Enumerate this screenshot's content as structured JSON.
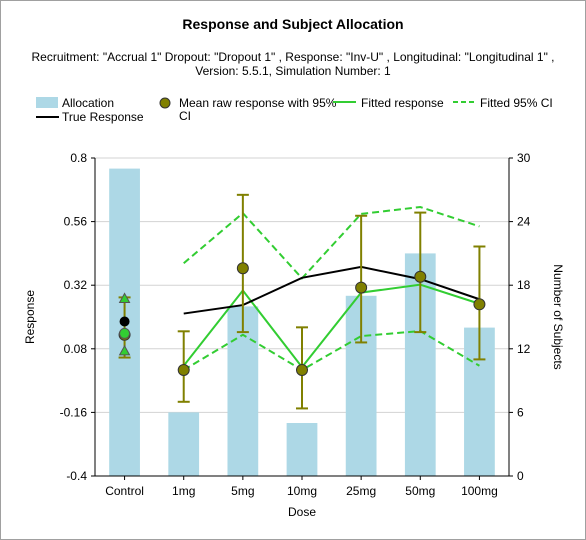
{
  "chart_data": {
    "type": "bar",
    "title": "Response and Subject Allocation",
    "subtitle": "Recruitment: \"Accrual 1\" Dropout: \"Dropout 1\" , Response: \"Inv-U\" , Longitudinal: \"Longitudinal 1\" , Version: 5.5.1, Simulation Number: 1",
    "xlabel": "Dose",
    "ylabel": "Response",
    "y2label": "Number of Subjects",
    "categories": [
      "Control",
      "1mg",
      "5mg",
      "10mg",
      "25mg",
      "50mg",
      "100mg"
    ],
    "ylim": [
      -0.4,
      0.8
    ],
    "yticks": [
      "0.8",
      "0.56",
      "0.32",
      "0.08",
      "-0.16",
      "-0.4"
    ],
    "ytick_values": [
      0.8,
      0.56,
      0.32,
      0.08,
      -0.16,
      -0.4
    ],
    "y2lim": [
      0,
      30
    ],
    "y2ticks": [
      "30",
      "24",
      "18",
      "12",
      "6",
      "0"
    ],
    "y2tick_values": [
      30,
      24,
      18,
      12,
      6,
      0
    ],
    "legend": {
      "position": "top",
      "entries": [
        {
          "label": "Allocation",
          "kind": "bar"
        },
        {
          "label": "Mean raw response with 95% CI",
          "kind": "marker"
        },
        {
          "label": "Fitted response",
          "kind": "line"
        },
        {
          "label": "Fitted 95% CI",
          "kind": "dashed"
        },
        {
          "label": "True Response",
          "kind": "line"
        }
      ]
    },
    "series": [
      {
        "name": "Allocation",
        "axis": "right",
        "values": [
          29,
          6,
          16,
          5,
          17,
          21,
          14
        ]
      },
      {
        "name": "Mean raw response with 95% CI",
        "axis": "left",
        "values": [
          0.133,
          0.0,
          0.384,
          0.0,
          0.311,
          0.352,
          0.248
        ],
        "lower": [
          0.047,
          -0.12,
          0.143,
          -0.145,
          0.104,
          0.143,
          0.04
        ],
        "upper": [
          0.274,
          0.146,
          0.661,
          0.161,
          0.582,
          0.594,
          0.466
        ]
      },
      {
        "name": "Fitted response",
        "axis": "left",
        "values": [
          0.138,
          0.016,
          0.3,
          0.011,
          0.292,
          0.322,
          0.25
        ]
      },
      {
        "name": "Fitted 95% CI",
        "axis": "left",
        "lower": [
          0.072,
          0.0,
          0.133,
          0.0,
          0.128,
          0.147,
          0.016
        ],
        "upper": [
          0.27,
          0.403,
          0.592,
          0.346,
          0.589,
          0.615,
          0.542
        ]
      },
      {
        "name": "True Response",
        "axis": "left",
        "values": [
          0.183,
          0.213,
          0.245,
          0.348,
          0.389,
          0.343,
          0.267
        ]
      }
    ],
    "colors": {
      "allocation": "#add8e6",
      "mean": "#808000",
      "fitted": "#32cd32",
      "true": "#000000",
      "grid": "#d3d3d3"
    },
    "grid": true
  }
}
